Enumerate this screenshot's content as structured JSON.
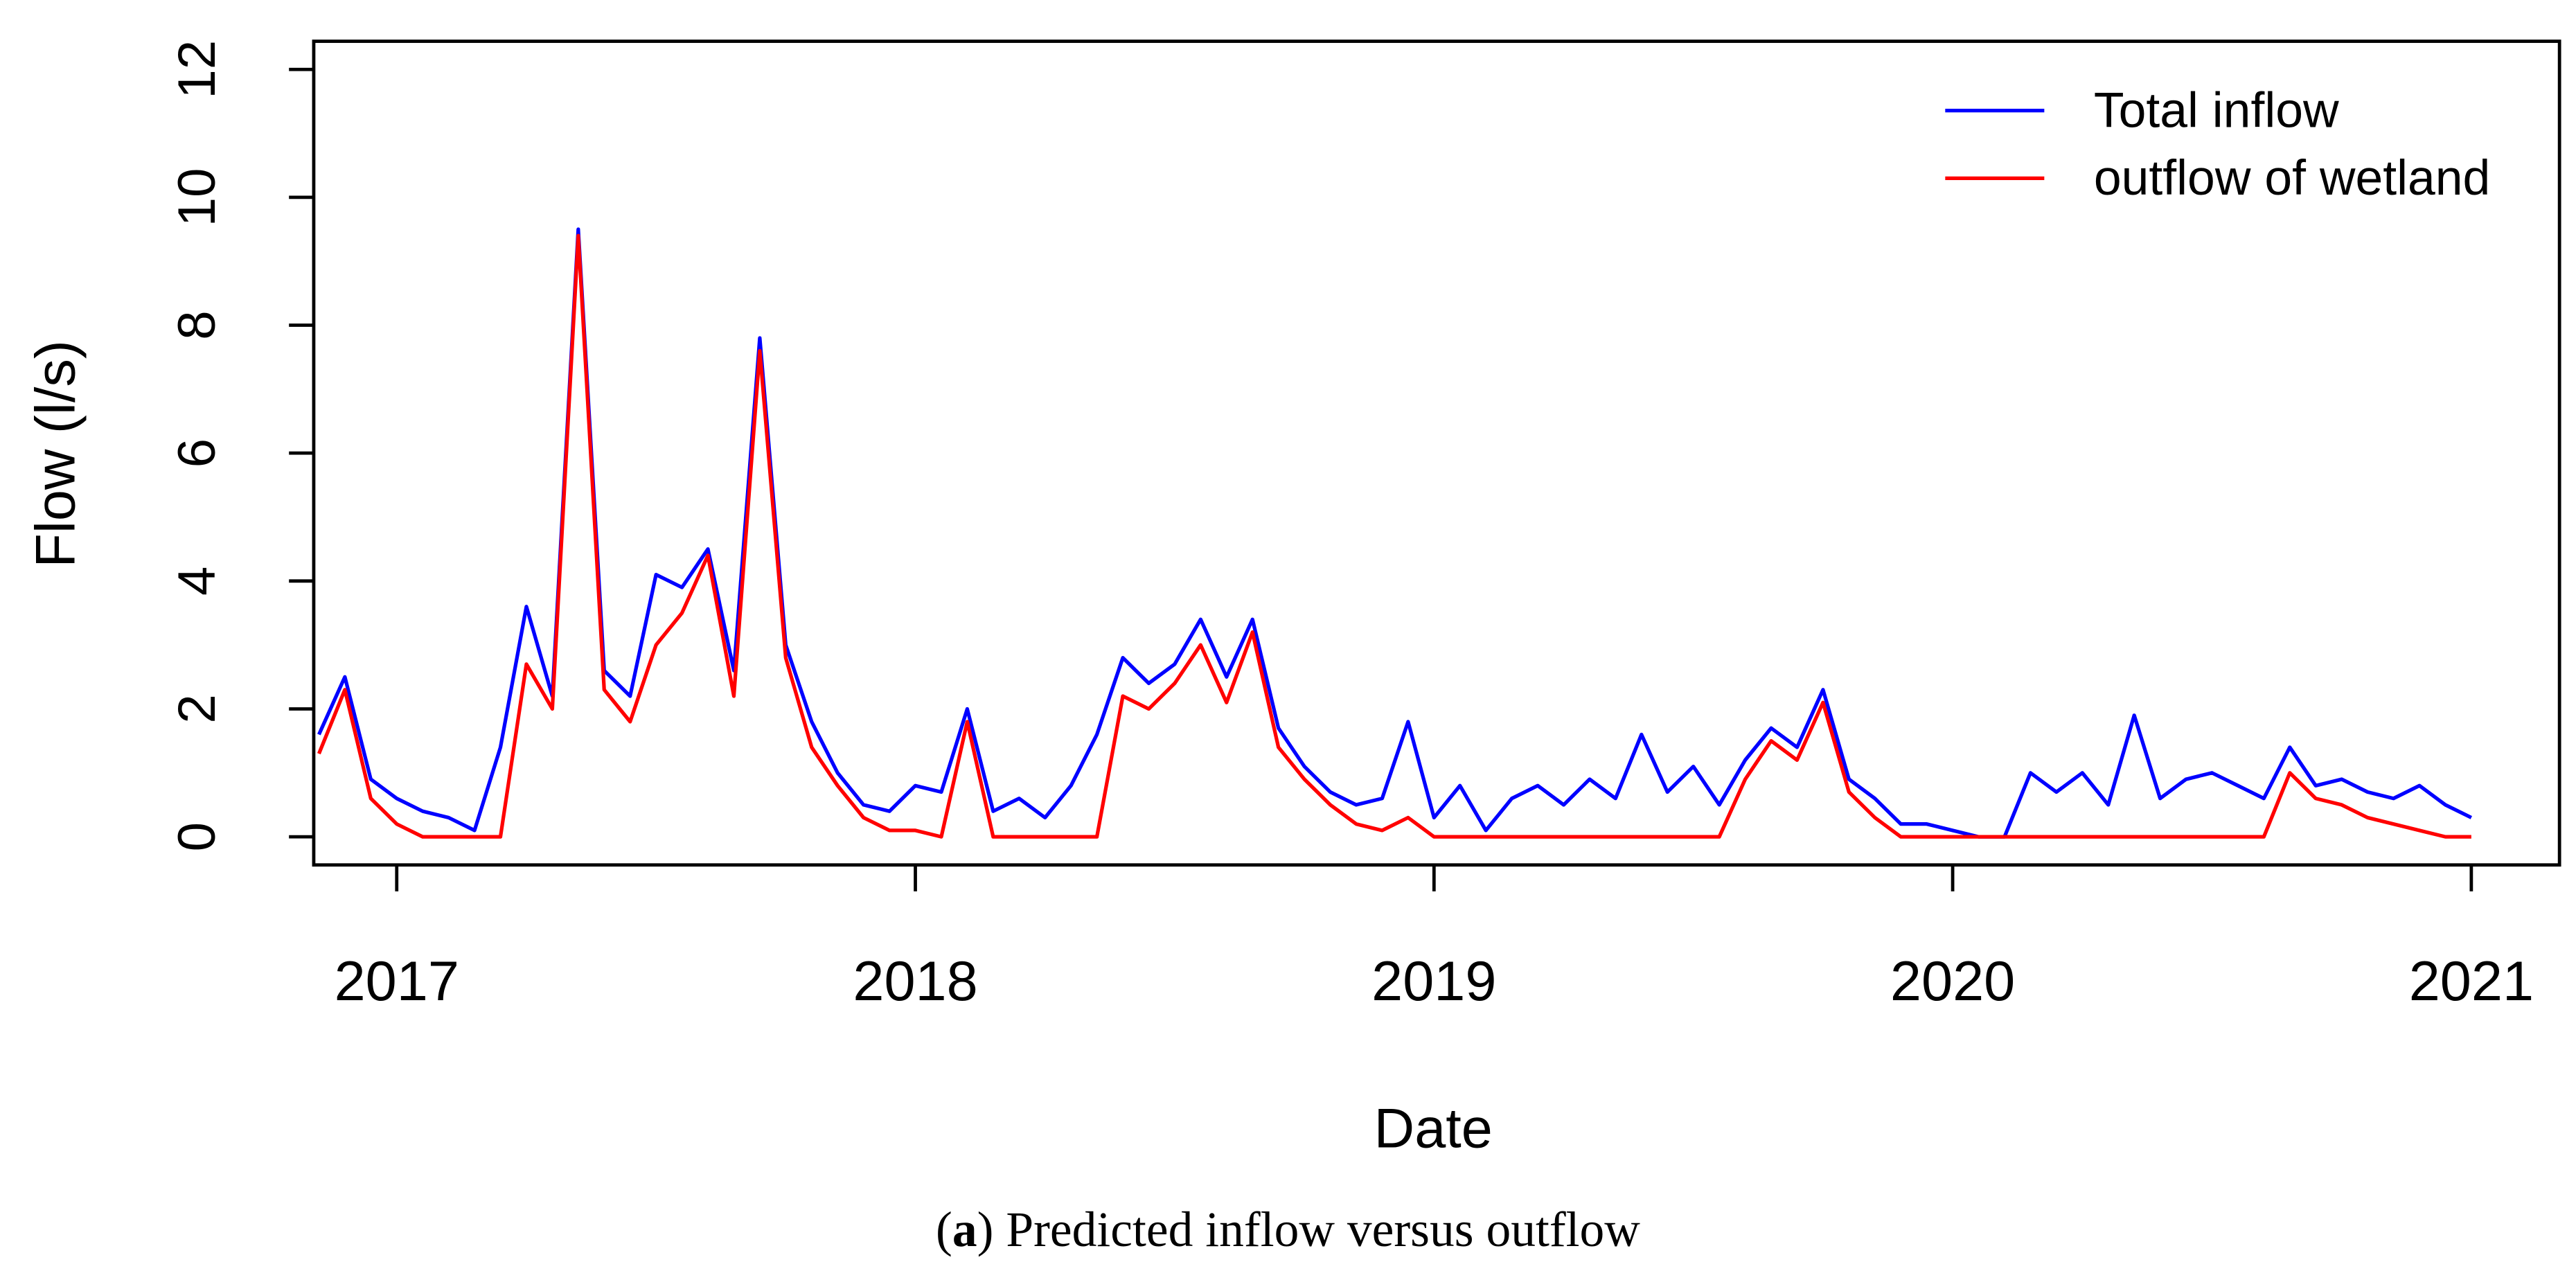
{
  "chart_data": {
    "type": "line",
    "xlabel": "Date",
    "ylabel": "Flow (l/s)",
    "caption_parts": [
      "(",
      "a",
      ") Predicted inflow versus outflow"
    ],
    "x": [
      2016.85,
      2016.9,
      2016.95,
      2017.0,
      2017.05,
      2017.1,
      2017.15,
      2017.2,
      2017.25,
      2017.3,
      2017.35,
      2017.4,
      2017.45,
      2017.5,
      2017.55,
      2017.6,
      2017.65,
      2017.7,
      2017.75,
      2017.8,
      2017.85,
      2017.9,
      2017.95,
      2018.0,
      2018.05,
      2018.1,
      2018.15,
      2018.2,
      2018.25,
      2018.3,
      2018.35,
      2018.4,
      2018.45,
      2018.5,
      2018.55,
      2018.6,
      2018.65,
      2018.7,
      2018.75,
      2018.8,
      2018.85,
      2018.9,
      2018.95,
      2019.0,
      2019.05,
      2019.1,
      2019.15,
      2019.2,
      2019.25,
      2019.3,
      2019.35,
      2019.4,
      2019.45,
      2019.5,
      2019.55,
      2019.6,
      2019.65,
      2019.7,
      2019.75,
      2019.8,
      2019.85,
      2019.9,
      2019.95,
      2020.0,
      2020.05,
      2020.1,
      2020.15,
      2020.2,
      2020.25,
      2020.3,
      2020.35,
      2020.4,
      2020.45,
      2020.5,
      2020.55,
      2020.6,
      2020.65,
      2020.7,
      2020.75,
      2020.8,
      2020.85,
      2020.9,
      2020.95,
      2021.0
    ],
    "series": [
      {
        "name": "Total inflow",
        "color": "#0000ff",
        "values": [
          1.6,
          2.5,
          0.9,
          0.6,
          0.4,
          0.3,
          0.1,
          1.4,
          3.6,
          2.2,
          9.5,
          2.6,
          2.2,
          4.1,
          3.9,
          4.5,
          2.6,
          7.8,
          3.0,
          1.8,
          1.0,
          0.5,
          0.4,
          0.8,
          0.7,
          2.0,
          0.4,
          0.6,
          0.3,
          0.8,
          1.6,
          2.8,
          2.4,
          2.7,
          3.4,
          2.5,
          3.4,
          1.7,
          1.1,
          0.7,
          0.5,
          0.6,
          1.8,
          0.3,
          0.8,
          0.1,
          0.6,
          0.8,
          0.5,
          0.9,
          0.6,
          1.6,
          0.7,
          1.1,
          0.5,
          1.2,
          1.7,
          1.4,
          2.3,
          0.9,
          0.6,
          0.2,
          0.2,
          0.1,
          0,
          0,
          1.0,
          0.7,
          1.0,
          0.5,
          1.9,
          0.6,
          0.9,
          1.0,
          0.8,
          0.6,
          1.4,
          0.8,
          0.9,
          0.7,
          0.6,
          0.8,
          0.5,
          0.3
        ]
      },
      {
        "name": "outflow of wetland",
        "color": "#ff0000",
        "values": [
          1.3,
          2.3,
          0.6,
          0.2,
          0,
          0,
          0,
          0,
          2.7,
          2.0,
          9.4,
          2.3,
          1.8,
          3.0,
          3.5,
          4.4,
          2.2,
          7.6,
          2.8,
          1.4,
          0.8,
          0.3,
          0.1,
          0.1,
          0,
          1.8,
          0,
          0,
          0,
          0,
          0,
          2.2,
          2.0,
          2.4,
          3.0,
          2.1,
          3.2,
          1.4,
          0.9,
          0.5,
          0.2,
          0.1,
          0.3,
          0,
          0,
          0,
          0,
          0,
          0,
          0,
          0,
          0,
          0,
          0,
          0,
          0.9,
          1.5,
          1.2,
          2.1,
          0.7,
          0.3,
          0,
          0,
          0,
          0,
          0,
          0,
          0,
          0,
          0,
          0,
          0,
          0,
          0,
          0,
          0,
          1.0,
          0.6,
          0.5,
          0.3,
          0.2,
          0.1,
          0,
          0
        ]
      }
    ],
    "xlim": [
      2016.84,
      2021.17
    ],
    "xticks": [
      2017,
      2018,
      2019,
      2020,
      2021
    ],
    "ylim": [
      -0.44,
      12.44
    ],
    "yticks": [
      0,
      2,
      4,
      6,
      8,
      10,
      12
    ],
    "legend": "top-right"
  }
}
